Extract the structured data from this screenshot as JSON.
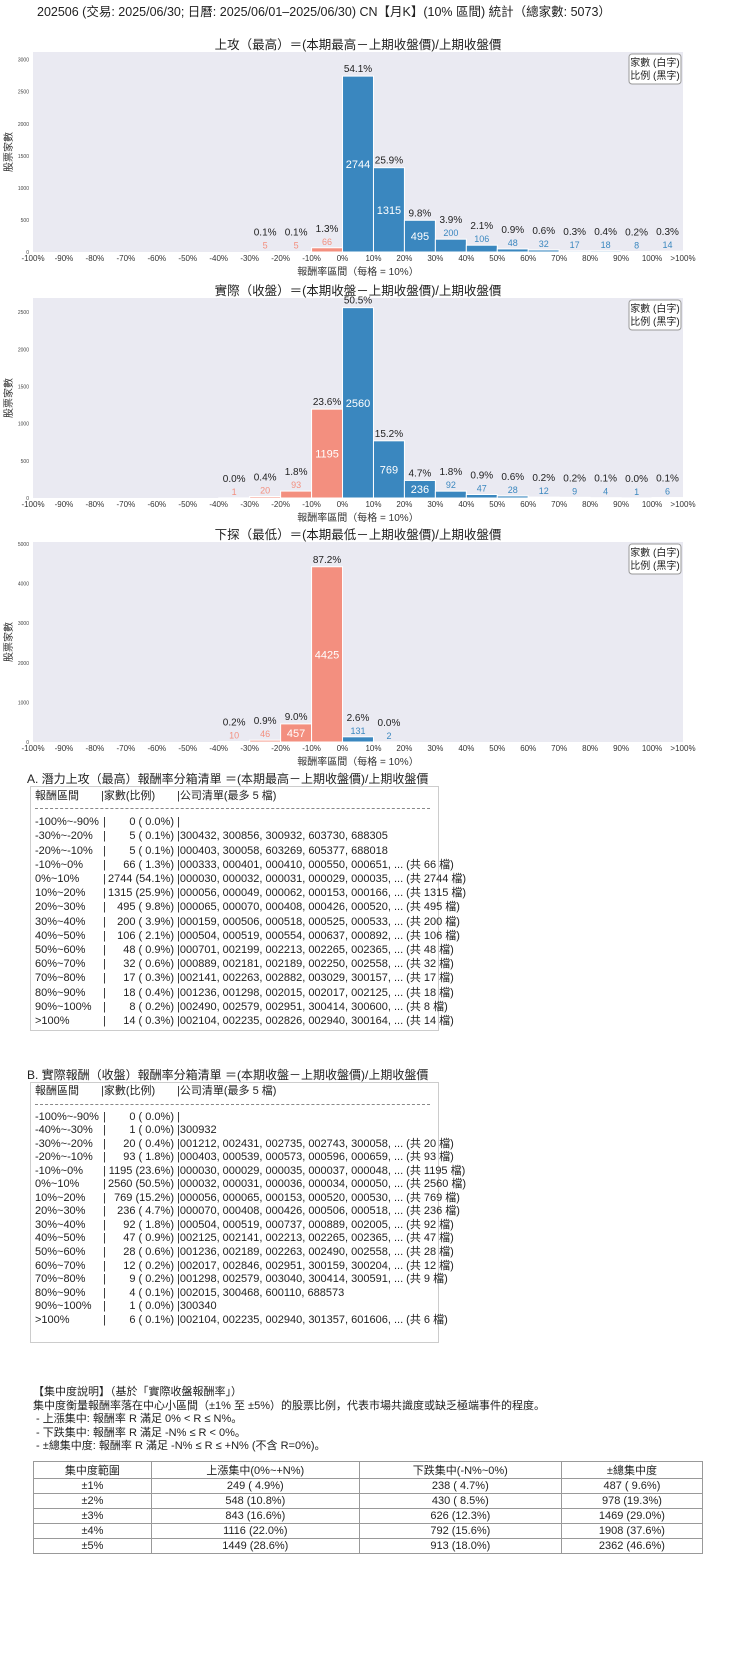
{
  "header": {
    "title": "202506 (交易: 2025/06/30; 日曆: 2025/06/01–2025/06/30) CN【月K】(10% 區間) 統計（總家數: 5073）"
  },
  "colors": {
    "negative": "#f38f7f",
    "positive": "#3a87bf",
    "plot_bg": "#eaeaf2"
  },
  "chart_data": [
    {
      "type": "bar",
      "title": "上攻（最高）＝(本期最高－上期收盤價)/上期收盤價",
      "xlabel": "報酬率區間（每格 = 10%）",
      "ylabel": "股票家數",
      "legend": [
        "家數 (白字)",
        "比例 (黑字)"
      ],
      "legend_position": "top-right",
      "grid": false,
      "tick_labels": [
        "-100%",
        "-90%",
        "-80%",
        "-70%",
        "-60%",
        "-50%",
        "-40%",
        "-30%",
        "-20%",
        "-10%",
        "0%",
        "10%",
        "20%",
        "30%",
        "40%",
        "50%",
        "60%",
        "70%",
        "80%",
        "90%",
        "100%",
        ">100%"
      ],
      "values": [
        0,
        0,
        0,
        0,
        0,
        0,
        0,
        5,
        5,
        66,
        2744,
        1315,
        495,
        200,
        106,
        48,
        32,
        17,
        18,
        8,
        14
      ],
      "pct_labels": [
        "",
        "",
        "",
        "",
        "",
        "",
        "",
        "0.1%",
        "0.1%",
        "1.3%",
        "54.1%",
        "25.9%",
        "9.8%",
        "3.9%",
        "2.1%",
        "0.9%",
        "0.6%",
        "0.3%",
        "0.4%",
        "0.2%",
        "0.3%"
      ],
      "ylim": [
        0,
        3120
      ],
      "yticks": [
        0,
        500,
        1000,
        1500,
        2000,
        2500,
        3000
      ]
    },
    {
      "type": "bar",
      "title": "實際（收盤）＝(本期收盤－上期收盤價)/上期收盤價",
      "xlabel": "報酬率區間（每格 = 10%）",
      "ylabel": "股票家數",
      "legend": [
        "家數 (白字)",
        "比例 (黑字)"
      ],
      "legend_position": "top-right",
      "grid": false,
      "tick_labels": [
        "-100%",
        "-90%",
        "-80%",
        "-70%",
        "-60%",
        "-50%",
        "-40%",
        "-30%",
        "-20%",
        "-10%",
        "0%",
        "10%",
        "20%",
        "30%",
        "40%",
        "50%",
        "60%",
        "70%",
        "80%",
        "90%",
        "100%",
        ">100%"
      ],
      "values": [
        0,
        0,
        0,
        0,
        0,
        0,
        1,
        20,
        93,
        1195,
        2560,
        769,
        236,
        92,
        47,
        28,
        12,
        9,
        4,
        1,
        6
      ],
      "pct_labels": [
        "",
        "",
        "",
        "",
        "",
        "",
        "0.0%",
        "0.4%",
        "1.8%",
        "23.6%",
        "50.5%",
        "15.2%",
        "4.7%",
        "1.8%",
        "0.9%",
        "0.6%",
        "0.2%",
        "0.2%",
        "0.1%",
        "0.0%",
        "0.1%"
      ],
      "ylim": [
        0,
        2690
      ],
      "yticks": [
        0,
        500,
        1000,
        1500,
        2000,
        2500
      ]
    },
    {
      "type": "bar",
      "title": "下探（最低）＝(本期最低－上期收盤價)/上期收盤價",
      "xlabel": "報酬率區間（每格 = 10%）",
      "ylabel": "股票家數",
      "legend": [
        "家數 (白字)",
        "比例 (黑字)"
      ],
      "legend_position": "top-right",
      "grid": false,
      "tick_labels": [
        "-100%",
        "-90%",
        "-80%",
        "-70%",
        "-60%",
        "-50%",
        "-40%",
        "-30%",
        "-20%",
        "-10%",
        "0%",
        "10%",
        "20%",
        "30%",
        "40%",
        "50%",
        "60%",
        "70%",
        "80%",
        "90%",
        "100%",
        ">100%"
      ],
      "values": [
        0,
        0,
        0,
        0,
        0,
        0,
        10,
        46,
        457,
        4425,
        131,
        2,
        0,
        0,
        0,
        0,
        0,
        0,
        0,
        0,
        0
      ],
      "pct_labels": [
        "",
        "",
        "",
        "",
        "",
        "",
        "0.2%",
        "0.9%",
        "9.0%",
        "87.2%",
        "2.6%",
        "0.0%",
        "",
        "",
        "",
        "",
        "",
        "",
        "",
        "",
        ""
      ],
      "ylim": [
        0,
        5050
      ],
      "yticks": [
        0,
        1000,
        2000,
        3000,
        4000,
        5000
      ]
    }
  ],
  "table_a": {
    "title": "A. 潛力上攻（最高）報酬率分箱清單 ＝(本期最高－上期收盤價)/上期收盤價",
    "headers": [
      "報酬區間",
      "家數(比例)",
      "公司清單(最多 5 檔)"
    ],
    "rows": [
      {
        "range": "-100%~-90%",
        "count": "0 ( 0.0%)",
        "list": ""
      },
      {
        "range": "-30%~-20%",
        "count": "5 ( 0.1%)",
        "list": "300432, 300856, 300932, 603730, 688305"
      },
      {
        "range": "-20%~-10%",
        "count": "5 ( 0.1%)",
        "list": "000403, 300058, 603269, 605377, 688018"
      },
      {
        "range": "-10%~0%",
        "count": "66 ( 1.3%)",
        "list": "000333, 000401, 000410, 000550, 000651, ... (共 66 檔)"
      },
      {
        "range": "0%~10%",
        "count": "2744 (54.1%)",
        "list": "000030, 000032, 000031, 000029, 000035, ... (共 2744 檔)"
      },
      {
        "range": "10%~20%",
        "count": "1315 (25.9%)",
        "list": "000056, 000049, 000062, 000153, 000166, ... (共 1315 檔)"
      },
      {
        "range": "20%~30%",
        "count": "495 ( 9.8%)",
        "list": "000065, 000070, 000408, 000426, 000520, ... (共 495 檔)"
      },
      {
        "range": "30%~40%",
        "count": "200 ( 3.9%)",
        "list": "000159, 000506, 000518, 000525, 000533, ... (共 200 檔)"
      },
      {
        "range": "40%~50%",
        "count": "106 ( 2.1%)",
        "list": "000504, 000519, 000554, 000637, 000892, ... (共 106 檔)"
      },
      {
        "range": "50%~60%",
        "count": "48 ( 0.9%)",
        "list": "000701, 002199, 002213, 002265, 002365, ... (共 48 檔)"
      },
      {
        "range": "60%~70%",
        "count": "32 ( 0.6%)",
        "list": "000889, 002181, 002189, 002250, 002558, ... (共 32 檔)"
      },
      {
        "range": "70%~80%",
        "count": "17 ( 0.3%)",
        "list": "002141, 002263, 002882, 003029, 300157, ... (共 17 檔)"
      },
      {
        "range": "80%~90%",
        "count": "18 ( 0.4%)",
        "list": "001236, 001298, 002015, 002017, 002125, ... (共 18 檔)"
      },
      {
        "range": "90%~100%",
        "count": "8 ( 0.2%)",
        "list": "002490, 002579, 002951, 300414, 300600, ... (共 8 檔)"
      },
      {
        "range": ">100%",
        "count": "14 ( 0.3%)",
        "list": "002104, 002235, 002826, 002940, 300164, ... (共 14 檔)"
      }
    ]
  },
  "table_b": {
    "title": "B. 實際報酬（收盤）報酬率分箱清單 ＝(本期收盤－上期收盤價)/上期收盤價",
    "headers": [
      "報酬區間",
      "家數(比例)",
      "公司清單(最多 5 檔)"
    ],
    "rows": [
      {
        "range": "-100%~-90%",
        "count": "0 ( 0.0%)",
        "list": ""
      },
      {
        "range": "-40%~-30%",
        "count": "1 ( 0.0%)",
        "list": "300932"
      },
      {
        "range": "-30%~-20%",
        "count": "20 ( 0.4%)",
        "list": "001212, 002431, 002735, 002743, 300058, ... (共 20 檔)"
      },
      {
        "range": "-20%~-10%",
        "count": "93 ( 1.8%)",
        "list": "000403, 000539, 000573, 000596, 000659, ... (共 93 檔)"
      },
      {
        "range": "-10%~0%",
        "count": "1195 (23.6%)",
        "list": "000030, 000029, 000035, 000037, 000048, ... (共 1195 檔)"
      },
      {
        "range": "0%~10%",
        "count": "2560 (50.5%)",
        "list": "000032, 000031, 000036, 000034, 000050, ... (共 2560 檔)"
      },
      {
        "range": "10%~20%",
        "count": "769 (15.2%)",
        "list": "000056, 000065, 000153, 000520, 000530, ... (共 769 檔)"
      },
      {
        "range": "20%~30%",
        "count": "236 ( 4.7%)",
        "list": "000070, 000408, 000426, 000506, 000518, ... (共 236 檔)"
      },
      {
        "range": "30%~40%",
        "count": "92 ( 1.8%)",
        "list": "000504, 000519, 000737, 000889, 002005, ... (共 92 檔)"
      },
      {
        "range": "40%~50%",
        "count": "47 ( 0.9%)",
        "list": "002125, 002141, 002213, 002265, 002365, ... (共 47 檔)"
      },
      {
        "range": "50%~60%",
        "count": "28 ( 0.6%)",
        "list": "001236, 002189, 002263, 002490, 002558, ... (共 28 檔)"
      },
      {
        "range": "60%~70%",
        "count": "12 ( 0.2%)",
        "list": "002017, 002846, 002951, 300159, 300204, ... (共 12 檔)"
      },
      {
        "range": "70%~80%",
        "count": "9 ( 0.2%)",
        "list": "001298, 002579, 003040, 300414, 300591, ... (共 9 檔)"
      },
      {
        "range": "80%~90%",
        "count": "4 ( 0.1%)",
        "list": "002015, 300468, 600110, 688573"
      },
      {
        "range": "90%~100%",
        "count": "1 ( 0.0%)",
        "list": "300340"
      },
      {
        "range": ">100%",
        "count": "6 ( 0.1%)",
        "list": "002104, 002235, 002940, 301357, 601606, ... (共 6 檔)"
      }
    ]
  },
  "concentration": {
    "notes": [
      "【集中度說明】（基於「實際收盤報酬率」）",
      "集中度衡量報酬率落在中心小區間（±1% 至 ±5%）的股票比例，代表市場共識度或缺乏極端事件的程度。",
      " - 上漲集中: 報酬率 R 滿足 0% < R ≤ N%。",
      " - 下跌集中: 報酬率 R 滿足 -N% ≤ R < 0%。",
      " - ±總集中度: 報酬率 R 滿足 -N% ≤ R ≤ +N% (不含 R=0%)。"
    ],
    "headers": [
      "集中度範圍",
      "上漲集中(0%~+N%)",
      "下跌集中(-N%~0%)",
      "±總集中度"
    ],
    "rows": [
      [
        "±1%",
        "249 ( 4.9%)",
        "238 ( 4.7%)",
        "487 ( 9.6%)"
      ],
      [
        "±2%",
        "548 (10.8%)",
        "430 ( 8.5%)",
        "978 (19.3%)"
      ],
      [
        "±3%",
        "843 (16.6%)",
        "626 (12.3%)",
        "1469 (29.0%)"
      ],
      [
        "±4%",
        "1116 (22.0%)",
        "792 (15.6%)",
        "1908 (37.6%)"
      ],
      [
        "±5%",
        "1449 (28.6%)",
        "913 (18.0%)",
        "2362 (46.6%)"
      ]
    ]
  }
}
